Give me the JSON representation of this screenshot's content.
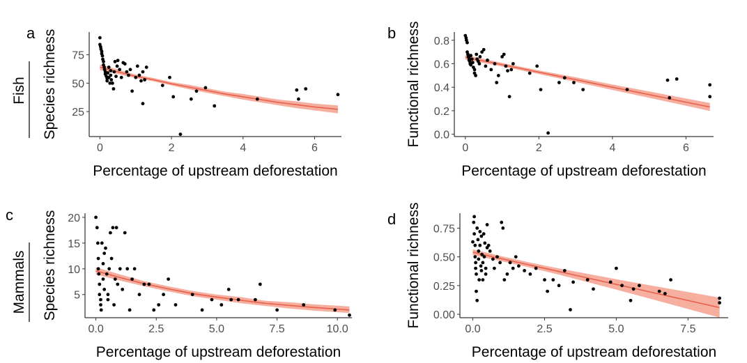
{
  "row_labels": [
    {
      "text": "Fish"
    },
    {
      "text": "Mammals"
    }
  ],
  "chart_data": [
    {
      "panel": "a",
      "type": "scatter",
      "xlabel": "Percentage of upstream deforestation",
      "ylabel": "Species richness",
      "xlim": [
        -0.3,
        6.75
      ],
      "ylim": [
        3,
        95
      ],
      "xticks": [
        0,
        2,
        4,
        6
      ],
      "yticks": [
        25,
        50,
        75
      ],
      "fit": {
        "x": [
          0,
          0.5,
          1,
          1.5,
          2,
          2.5,
          3,
          3.5,
          4,
          4.5,
          5,
          5.5,
          6,
          6.65
        ],
        "y": [
          64,
          60,
          56,
          53,
          49.5,
          46.5,
          43.5,
          40.5,
          38,
          35.5,
          33,
          31,
          29,
          27
        ],
        "lower": [
          61.5,
          58,
          54.5,
          51.5,
          48,
          44.5,
          41.5,
          38.5,
          35.5,
          33,
          30.5,
          28,
          26,
          23.5
        ],
        "upper": [
          66.5,
          62,
          57.5,
          54.5,
          51,
          48.5,
          45.5,
          42.5,
          40.5,
          38,
          35.5,
          34,
          32,
          30.5
        ]
      },
      "points": [
        [
          0,
          90
        ],
        [
          0,
          84
        ],
        [
          0.02,
          82
        ],
        [
          0.03,
          80
        ],
        [
          0.05,
          78
        ],
        [
          0.05,
          76
        ],
        [
          0.07,
          74
        ],
        [
          0.08,
          71
        ],
        [
          0.1,
          69
        ],
        [
          0.1,
          66
        ],
        [
          0.12,
          64
        ],
        [
          0.13,
          62
        ],
        [
          0.15,
          60
        ],
        [
          0.15,
          58
        ],
        [
          0.18,
          56
        ],
        [
          0.2,
          54
        ],
        [
          0.2,
          52
        ],
        [
          0.22,
          59
        ],
        [
          0.25,
          64
        ],
        [
          0.25,
          55
        ],
        [
          0.28,
          50
        ],
        [
          0.3,
          61
        ],
        [
          0.3,
          57
        ],
        [
          0.32,
          53
        ],
        [
          0.35,
          50
        ],
        [
          0.38,
          45
        ],
        [
          0.4,
          60
        ],
        [
          0.42,
          69
        ],
        [
          0.45,
          56
        ],
        [
          0.48,
          65
        ],
        [
          0.5,
          70
        ],
        [
          0.55,
          62
        ],
        [
          0.6,
          55
        ],
        [
          0.65,
          68
        ],
        [
          0.7,
          67
        ],
        [
          0.75,
          60
        ],
        [
          0.8,
          57
        ],
        [
          0.85,
          62
        ],
        [
          0.9,
          43
        ],
        [
          1.0,
          55
        ],
        [
          1.05,
          65
        ],
        [
          1.1,
          57
        ],
        [
          1.15,
          52
        ],
        [
          1.2,
          60
        ],
        [
          1.2,
          32
        ],
        [
          1.25,
          53
        ],
        [
          1.3,
          64
        ],
        [
          1.75,
          48
        ],
        [
          1.95,
          55
        ],
        [
          2.05,
          38
        ],
        [
          2.25,
          5
        ],
        [
          2.55,
          36
        ],
        [
          2.7,
          43
        ],
        [
          2.95,
          46
        ],
        [
          3.2,
          30
        ],
        [
          4.4,
          36
        ],
        [
          5.5,
          44
        ],
        [
          5.55,
          36
        ],
        [
          5.75,
          45
        ],
        [
          6.65,
          40
        ]
      ]
    },
    {
      "panel": "b",
      "type": "scatter",
      "xlabel": "Percentage of upstream deforestation",
      "ylabel": "Functional richness",
      "xlim": [
        -0.3,
        6.75
      ],
      "ylim": [
        -0.02,
        0.87
      ],
      "xticks": [
        0,
        2,
        4,
        6
      ],
      "yticks": [
        "0.0",
        "0.2",
        "0.4",
        "0.6",
        "0.8"
      ],
      "fit": {
        "x": [
          0,
          1,
          2,
          3,
          4,
          5,
          6,
          6.65
        ],
        "y": [
          0.655,
          0.592,
          0.528,
          0.465,
          0.4,
          0.337,
          0.273,
          0.232
        ],
        "lower": [
          0.635,
          0.577,
          0.513,
          0.445,
          0.377,
          0.31,
          0.242,
          0.198
        ],
        "upper": [
          0.675,
          0.607,
          0.543,
          0.485,
          0.423,
          0.364,
          0.304,
          0.266
        ]
      },
      "points": [
        [
          0,
          0.84
        ],
        [
          0.02,
          0.82
        ],
        [
          0.03,
          0.8
        ],
        [
          0.05,
          0.78
        ],
        [
          0.05,
          0.7
        ],
        [
          0.07,
          0.68
        ],
        [
          0.08,
          0.66
        ],
        [
          0.1,
          0.65
        ],
        [
          0.1,
          0.63
        ],
        [
          0.12,
          0.62
        ],
        [
          0.13,
          0.6
        ],
        [
          0.15,
          0.67
        ],
        [
          0.15,
          0.59
        ],
        [
          0.18,
          0.64
        ],
        [
          0.2,
          0.61
        ],
        [
          0.22,
          0.57
        ],
        [
          0.25,
          0.55
        ],
        [
          0.25,
          0.52
        ],
        [
          0.28,
          0.5
        ],
        [
          0.3,
          0.68
        ],
        [
          0.32,
          0.64
        ],
        [
          0.35,
          0.62
        ],
        [
          0.38,
          0.6
        ],
        [
          0.4,
          0.66
        ],
        [
          0.45,
          0.7
        ],
        [
          0.5,
          0.72
        ],
        [
          0.55,
          0.58
        ],
        [
          0.6,
          0.63
        ],
        [
          0.7,
          0.55
        ],
        [
          0.8,
          0.6
        ],
        [
          0.85,
          0.44
        ],
        [
          0.9,
          0.5
        ],
        [
          1.0,
          0.66
        ],
        [
          1.05,
          0.68
        ],
        [
          1.1,
          0.58
        ],
        [
          1.15,
          0.54
        ],
        [
          1.2,
          0.32
        ],
        [
          1.25,
          0.55
        ],
        [
          1.3,
          0.6
        ],
        [
          1.75,
          0.52
        ],
        [
          1.95,
          0.58
        ],
        [
          2.05,
          0.38
        ],
        [
          2.25,
          0.01
        ],
        [
          2.55,
          0.44
        ],
        [
          2.7,
          0.48
        ],
        [
          2.95,
          0.44
        ],
        [
          3.2,
          0.38
        ],
        [
          4.4,
          0.38
        ],
        [
          5.5,
          0.46
        ],
        [
          5.55,
          0.31
        ],
        [
          5.75,
          0.47
        ],
        [
          6.65,
          0.42
        ],
        [
          6.65,
          0.32
        ]
      ]
    },
    {
      "panel": "c",
      "type": "scatter",
      "xlabel": "Percentage of upstream deforestation",
      "ylabel": "Species richness",
      "xlim": [
        -0.45,
        10.6
      ],
      "ylim": [
        0.5,
        20.8
      ],
      "xticks": [
        "0.0",
        "2.5",
        "5.0",
        "7.5",
        "10.0"
      ],
      "yticks": [
        5,
        10,
        15,
        20
      ],
      "fit": {
        "x": [
          0,
          1,
          2,
          3,
          4,
          5,
          6,
          7,
          8,
          9,
          10.5
        ],
        "y": [
          9.6,
          8.3,
          7.1,
          6.1,
          5.2,
          4.5,
          3.9,
          3.3,
          2.9,
          2.5,
          2.0
        ],
        "lower": [
          8.9,
          7.7,
          6.6,
          5.6,
          4.7,
          4.0,
          3.3,
          2.8,
          2.3,
          1.9,
          1.4
        ],
        "upper": [
          10.3,
          8.9,
          7.6,
          6.6,
          5.7,
          5.0,
          4.5,
          3.8,
          3.5,
          3.1,
          2.7
        ]
      },
      "points": [
        [
          0,
          20
        ],
        [
          0.05,
          18
        ],
        [
          0.08,
          15
        ],
        [
          0.1,
          12
        ],
        [
          0.1,
          10
        ],
        [
          0.12,
          9
        ],
        [
          0.15,
          7
        ],
        [
          0.15,
          5
        ],
        [
          0.2,
          4
        ],
        [
          0.2,
          3
        ],
        [
          0.22,
          2
        ],
        [
          0.25,
          15
        ],
        [
          0.3,
          11
        ],
        [
          0.3,
          8
        ],
        [
          0.35,
          6
        ],
        [
          0.35,
          13
        ],
        [
          0.4,
          14
        ],
        [
          0.45,
          9
        ],
        [
          0.5,
          5
        ],
        [
          0.5,
          4
        ],
        [
          0.55,
          10
        ],
        [
          0.6,
          17
        ],
        [
          0.65,
          12
        ],
        [
          0.7,
          18
        ],
        [
          0.75,
          3
        ],
        [
          0.8,
          8
        ],
        [
          0.85,
          18
        ],
        [
          0.9,
          7
        ],
        [
          1.0,
          10
        ],
        [
          1.1,
          6
        ],
        [
          1.2,
          17
        ],
        [
          1.3,
          10
        ],
        [
          1.4,
          2
        ],
        [
          1.5,
          8
        ],
        [
          1.6,
          10
        ],
        [
          1.8,
          5
        ],
        [
          2.0,
          7
        ],
        [
          2.2,
          7
        ],
        [
          2.4,
          2
        ],
        [
          2.6,
          3
        ],
        [
          2.8,
          5
        ],
        [
          3.0,
          8
        ],
        [
          3.3,
          3
        ],
        [
          4.0,
          5
        ],
        [
          4.4,
          2
        ],
        [
          4.8,
          4
        ],
        [
          5.2,
          3
        ],
        [
          5.5,
          6
        ],
        [
          5.6,
          4
        ],
        [
          5.9,
          4
        ],
        [
          6.6,
          4
        ],
        [
          6.8,
          7
        ],
        [
          7.5,
          2
        ],
        [
          8.6,
          3
        ],
        [
          9.9,
          2
        ],
        [
          10.5,
          1
        ]
      ]
    },
    {
      "panel": "d",
      "type": "scatter",
      "xlabel": "Percentage of upstream deforestation",
      "ylabel": "Functional richness",
      "xlim": [
        -0.45,
        8.9
      ],
      "ylim": [
        -0.03,
        0.88
      ],
      "xticks": [
        "0.0",
        "2.5",
        "5.0",
        "7.5"
      ],
      "yticks": [
        "0.00",
        "0.25",
        "0.50",
        "0.75"
      ],
      "fit": {
        "x": [
          0,
          1,
          2,
          3,
          4,
          5,
          6,
          7,
          8,
          8.6
        ],
        "y": [
          0.54,
          0.484,
          0.428,
          0.372,
          0.316,
          0.26,
          0.204,
          0.148,
          0.092,
          0.058
        ],
        "lower": [
          0.515,
          0.462,
          0.406,
          0.345,
          0.28,
          0.215,
          0.148,
          0.08,
          0.012,
          -0.028
        ],
        "upper": [
          0.565,
          0.506,
          0.45,
          0.399,
          0.352,
          0.305,
          0.26,
          0.216,
          0.172,
          0.144
        ]
      },
      "points": [
        [
          0,
          0.63
        ],
        [
          0.03,
          0.8
        ],
        [
          0.05,
          0.85
        ],
        [
          0.05,
          0.7
        ],
        [
          0.08,
          0.6
        ],
        [
          0.08,
          0.5
        ],
        [
          0.1,
          0.45
        ],
        [
          0.1,
          0.4
        ],
        [
          0.12,
          0.35
        ],
        [
          0.12,
          0.2
        ],
        [
          0.15,
          0.12
        ],
        [
          0.15,
          0.75
        ],
        [
          0.18,
          0.65
        ],
        [
          0.2,
          0.55
        ],
        [
          0.2,
          0.48
        ],
        [
          0.22,
          0.3
        ],
        [
          0.25,
          0.72
        ],
        [
          0.25,
          0.6
        ],
        [
          0.28,
          0.42
        ],
        [
          0.3,
          0.38
        ],
        [
          0.3,
          0.68
        ],
        [
          0.32,
          0.52
        ],
        [
          0.35,
          0.45
        ],
        [
          0.35,
          0.3
        ],
        [
          0.38,
          0.7
        ],
        [
          0.4,
          0.5
        ],
        [
          0.42,
          0.62
        ],
        [
          0.45,
          0.4
        ],
        [
          0.45,
          0.35
        ],
        [
          0.5,
          0.58
        ],
        [
          0.5,
          0.78
        ],
        [
          0.55,
          0.6
        ],
        [
          0.6,
          0.55
        ],
        [
          0.7,
          0.48
        ],
        [
          0.75,
          0.4
        ],
        [
          0.85,
          0.5
        ],
        [
          0.95,
          0.45
        ],
        [
          1.0,
          0.8
        ],
        [
          1.05,
          0.75
        ],
        [
          1.1,
          0.3
        ],
        [
          1.2,
          0.35
        ],
        [
          1.3,
          0.45
        ],
        [
          1.4,
          0.4
        ],
        [
          1.5,
          0.5
        ],
        [
          1.6,
          0.42
        ],
        [
          1.8,
          0.38
        ],
        [
          2.0,
          0.35
        ],
        [
          2.2,
          0.4
        ],
        [
          2.5,
          0.3
        ],
        [
          2.6,
          0.2
        ],
        [
          2.8,
          0.3
        ],
        [
          3.0,
          0.25
        ],
        [
          3.2,
          0.38
        ],
        [
          3.4,
          0.04
        ],
        [
          3.5,
          0.28
        ],
        [
          4.0,
          0.3
        ],
        [
          4.2,
          0.22
        ],
        [
          4.8,
          0.28
        ],
        [
          5.0,
          0.4
        ],
        [
          5.2,
          0.25
        ],
        [
          5.5,
          0.12
        ],
        [
          5.6,
          0.22
        ],
        [
          5.8,
          0.25
        ],
        [
          6.5,
          0.2
        ],
        [
          6.7,
          0.18
        ],
        [
          6.9,
          0.3
        ],
        [
          8.6,
          0.14
        ],
        [
          8.6,
          0.1
        ]
      ]
    }
  ]
}
